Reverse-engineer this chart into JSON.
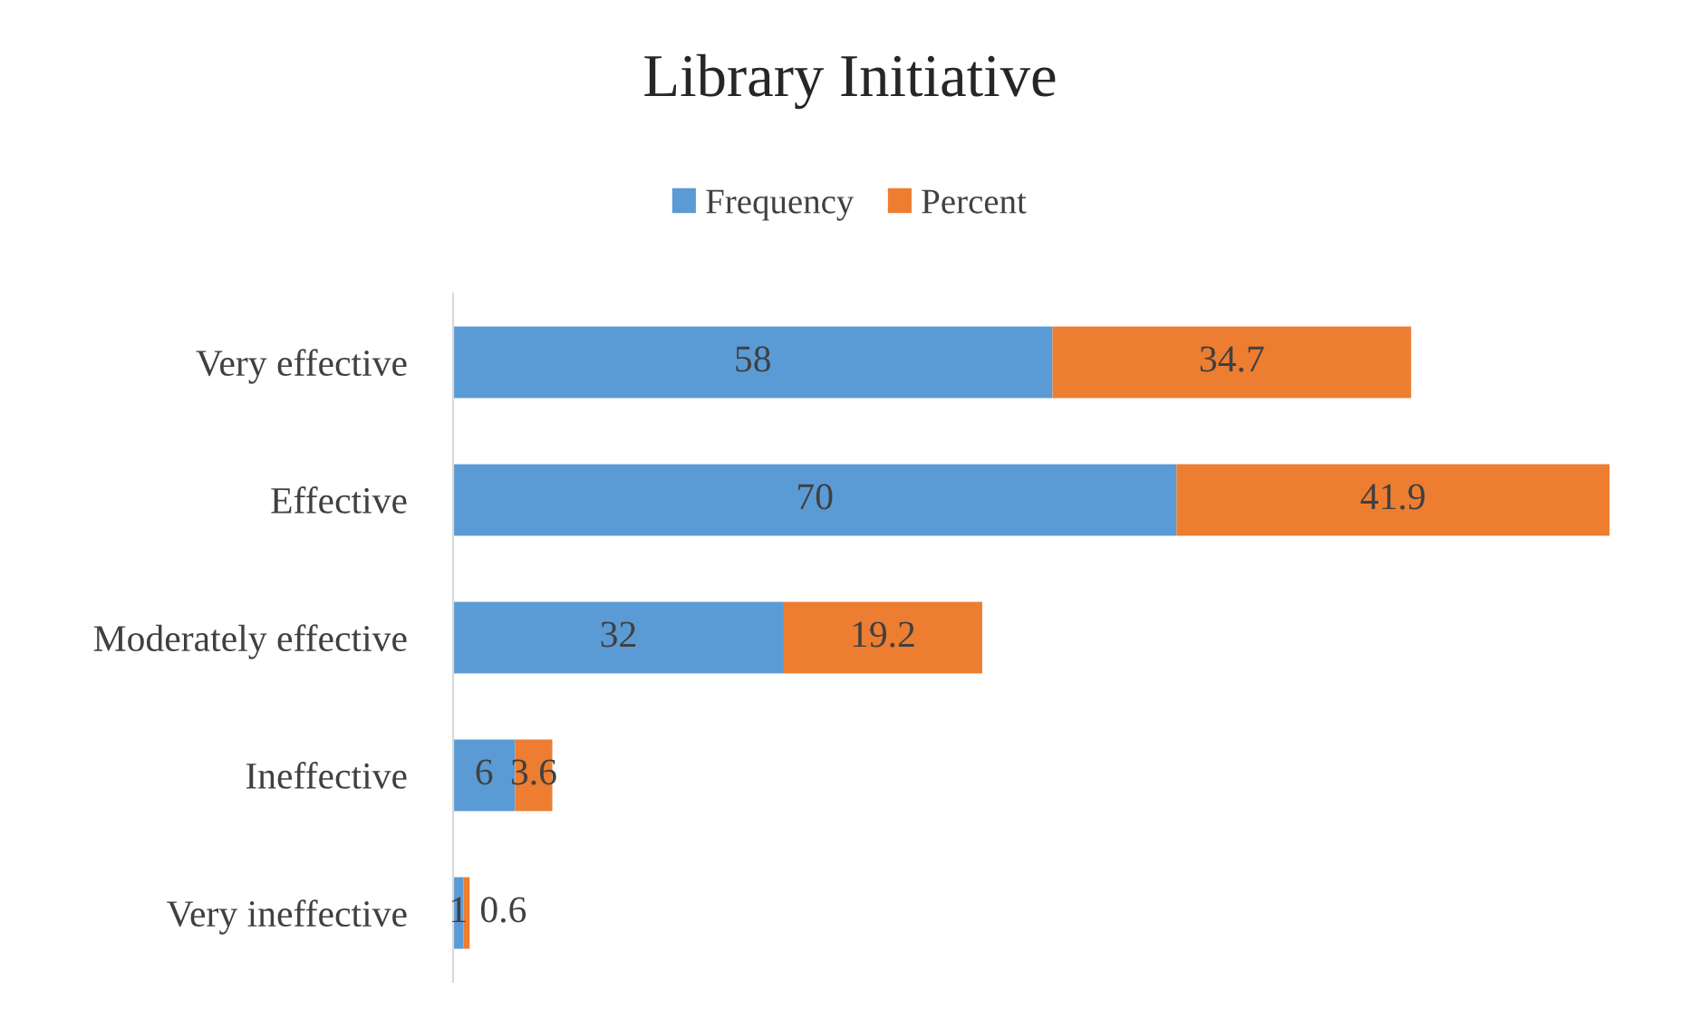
{
  "chart_data": {
    "type": "bar",
    "title": "Library Initiative",
    "orientation": "horizontal",
    "stacked": true,
    "categories": [
      "Very effective",
      "Effective",
      "Moderately effective",
      "Ineffective",
      "Very ineffective"
    ],
    "series": [
      {
        "name": "Frequency",
        "color": "#5b9bd5",
        "values": [
          58,
          70,
          32,
          6,
          1
        ]
      },
      {
        "name": "Percent",
        "color": "#ed7d31",
        "values": [
          34.7,
          41.9,
          19.2,
          3.6,
          0.6
        ]
      }
    ],
    "data_labels": true,
    "legend": "top",
    "grid": false,
    "tick_labels": "y"
  }
}
